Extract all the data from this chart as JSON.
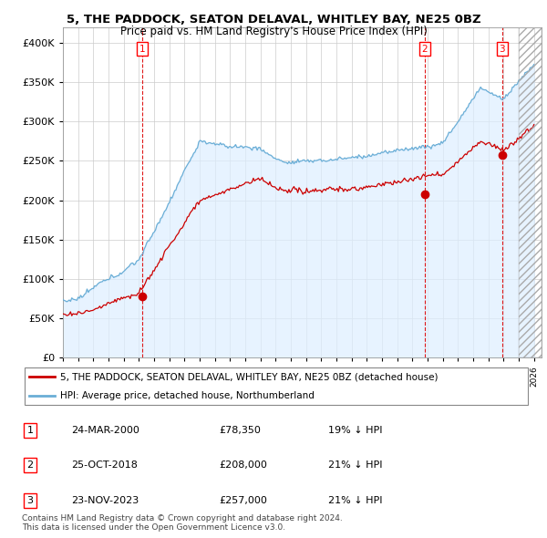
{
  "title": "5, THE PADDOCK, SEATON DELAVAL, WHITLEY BAY, NE25 0BZ",
  "subtitle": "Price paid vs. HM Land Registry's House Price Index (HPI)",
  "xlim_start": 1995.0,
  "xlim_end": 2026.5,
  "ylim": [
    0,
    420000
  ],
  "sale_dates": [
    2000.23,
    2018.81,
    2023.9
  ],
  "sale_prices": [
    78350,
    208000,
    257000
  ],
  "sale_labels": [
    "1",
    "2",
    "3"
  ],
  "hpi_color": "#6aaed6",
  "hpi_fill_color": "#ddeeff",
  "price_color": "#cc0000",
  "vline_color": "#dd0000",
  "grid_color": "#cccccc",
  "bg_color": "#f0f4fa",
  "legend_entries": [
    "5, THE PADDOCK, SEATON DELAVAL, WHITLEY BAY, NE25 0BZ (detached house)",
    "HPI: Average price, detached house, Northumberland"
  ],
  "table_data": [
    [
      "1",
      "24-MAR-2000",
      "£78,350",
      "19% ↓ HPI"
    ],
    [
      "2",
      "25-OCT-2018",
      "£208,000",
      "21% ↓ HPI"
    ],
    [
      "3",
      "23-NOV-2023",
      "£257,000",
      "21% ↓ HPI"
    ]
  ],
  "footer": "Contains HM Land Registry data © Crown copyright and database right 2024.\nThis data is licensed under the Open Government Licence v3.0.",
  "ytick_labels": [
    "£0",
    "£50K",
    "£100K",
    "£150K",
    "£200K",
    "£250K",
    "£300K",
    "£350K",
    "£400K"
  ],
  "ytick_values": [
    0,
    50000,
    100000,
    150000,
    200000,
    250000,
    300000,
    350000,
    400000
  ]
}
